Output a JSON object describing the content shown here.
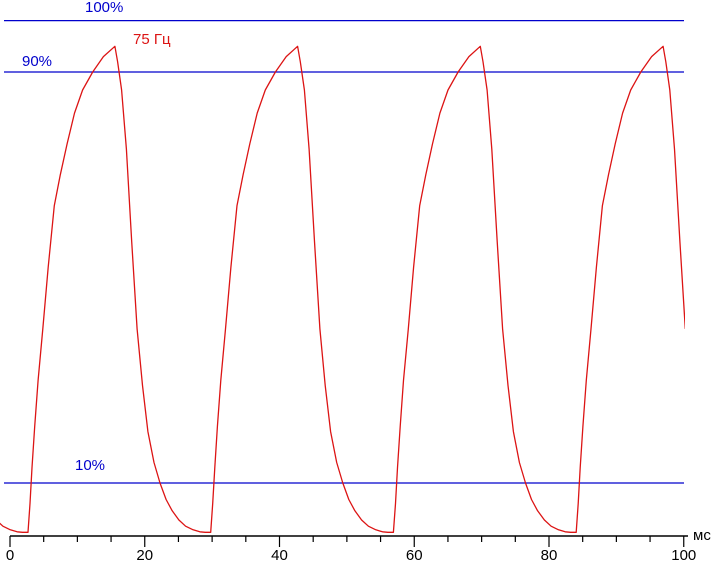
{
  "labels": {
    "line_100": "100%",
    "line_90": "90%",
    "line_10": "10%",
    "frequency": "75 Гц",
    "x_unit": "мс"
  },
  "colors": {
    "reference_blue": "#0000CC",
    "waveform_red": "#DC1414",
    "axis_black": "#000000"
  },
  "chart_data": {
    "type": "line",
    "title": "",
    "xlabel": "мс",
    "ylabel": "",
    "x_range_ms": [
      0,
      100
    ],
    "x_major_ticks": [
      0,
      20,
      40,
      60,
      80,
      100
    ],
    "x_minor_tick_step_ms": 5,
    "reference_levels_percent": [
      100,
      90,
      10
    ],
    "annotation": "75 Гц",
    "legend": "none",
    "grid": "off",
    "series": [
      {
        "name": "75 Гц",
        "description": "Periodic pulse waveform: fast quasi-exponential rise to ~95% peak, steep fall with decay tail to ~0.4% floor",
        "period_ms": 27.12,
        "cycle_start_times_ms": [
          -24.45,
          2.67,
          29.79,
          56.91,
          84.03
        ],
        "peak_offset_ms": 12.9,
        "peak_level_percent": 95,
        "floor_level_percent": 0.4,
        "cycle_points_t_ms_v_pct": [
          [
            0,
            0.4
          ],
          [
            0.3,
            6
          ],
          [
            0.6,
            13
          ],
          [
            1.0,
            21
          ],
          [
            1.5,
            30
          ],
          [
            2.2,
            40
          ],
          [
            3.0,
            52
          ],
          [
            3.9,
            64
          ],
          [
            4.8,
            70
          ],
          [
            5.8,
            76
          ],
          [
            6.9,
            82
          ],
          [
            8.1,
            86.5
          ],
          [
            9.6,
            90
          ],
          [
            11.2,
            93
          ],
          [
            12.9,
            95
          ],
          [
            13.3,
            92
          ],
          [
            13.9,
            86.5
          ],
          [
            14.6,
            75
          ],
          [
            15.4,
            57
          ],
          [
            16.2,
            40
          ],
          [
            17.0,
            29
          ],
          [
            17.8,
            20
          ],
          [
            18.7,
            14
          ],
          [
            19.6,
            10
          ],
          [
            20.5,
            6.8
          ],
          [
            21.4,
            4.6
          ],
          [
            22.4,
            2.8
          ],
          [
            23.4,
            1.6
          ],
          [
            24.5,
            0.9
          ],
          [
            25.5,
            0.5
          ],
          [
            26.3,
            0.4
          ]
        ]
      }
    ]
  }
}
